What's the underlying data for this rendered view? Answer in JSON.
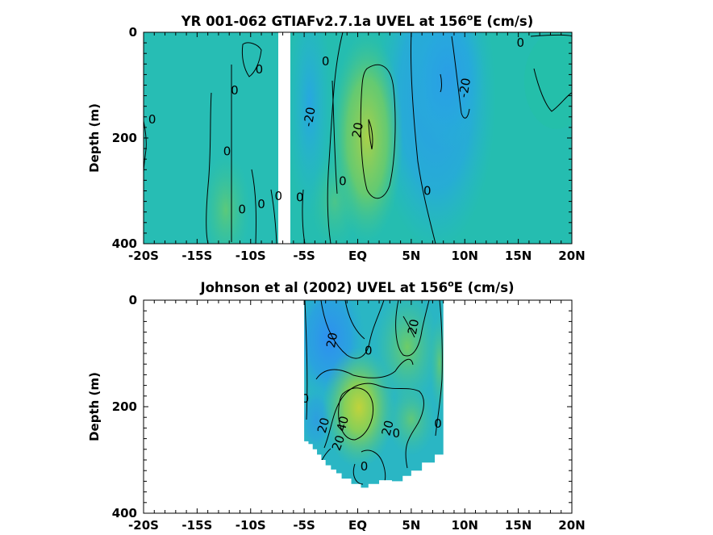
{
  "colors": {
    "background": "#25bdb0",
    "blue": "#2a9ee6",
    "blue_mid": "#1fb0d8",
    "green": "#5fcb72",
    "yellow_green": "#a8d04a",
    "contour": "#000000"
  },
  "chart_data": [
    {
      "id": "model",
      "type": "heatmap",
      "title": "YR 001-062 GTIAFv2.7.1a UVEL at 156",
      "title_sup": "o",
      "title_tail": "E (cm/s)",
      "xlabel": "",
      "ylabel": "Depth (m)",
      "xlim": [
        -20,
        20
      ],
      "ylim": [
        400,
        0
      ],
      "x_ticks": [
        -20,
        -15,
        -10,
        -5,
        0,
        5,
        10,
        15,
        20
      ],
      "x_tick_labels": [
        "-20S",
        "-15S",
        "-10S",
        "-5S",
        "EQ",
        "5N",
        "10N",
        "15N",
        "20N"
      ],
      "y_ticks": [
        0,
        200,
        400
      ],
      "y_tick_labels": [
        "0",
        "200",
        "400"
      ],
      "missing_latitude_band": [
        -7.3,
        -6.3
      ],
      "features": [
        {
          "kind": "eastward_core",
          "lat": 1.3,
          "depth": 180,
          "max_speed": 30,
          "lat_range": [
            -1.2,
            3.8
          ],
          "depth_range": [
            60,
            290
          ]
        },
        {
          "kind": "westward_core",
          "lat": 8.5,
          "depth": 110,
          "max_speed": -25,
          "lat_range": [
            4.5,
            13
          ],
          "depth_range": [
            0,
            300
          ]
        },
        {
          "kind": "westward_band",
          "lat": -4.5,
          "depth": 130,
          "max_speed": -15
        },
        {
          "kind": "eastward_band",
          "lat": -11.5,
          "depth": 260,
          "max_speed": 10
        }
      ],
      "contour_labels": [
        {
          "text": "0",
          "lat": -19.2,
          "depth": 165
        },
        {
          "text": "0",
          "lat": -11.5,
          "depth": 110
        },
        {
          "text": "0",
          "lat": -9.2,
          "depth": 70
        },
        {
          "text": "0",
          "lat": -12.2,
          "depth": 225
        },
        {
          "text": "0",
          "lat": -10.8,
          "depth": 335
        },
        {
          "text": "0",
          "lat": -9.0,
          "depth": 325
        },
        {
          "text": "0",
          "lat": -7.4,
          "depth": 310
        },
        {
          "text": "0",
          "lat": -5.4,
          "depth": 312
        },
        {
          "text": "0",
          "lat": -3.0,
          "depth": 55
        },
        {
          "text": "-20",
          "lat": -4.5,
          "depth": 160,
          "rotate": -80
        },
        {
          "text": "20",
          "lat": 0.0,
          "depth": 185,
          "rotate": -80
        },
        {
          "text": "0",
          "lat": -1.4,
          "depth": 282
        },
        {
          "text": "0",
          "lat": 6.5,
          "depth": 300
        },
        {
          "text": "-20",
          "lat": 10.0,
          "depth": 105,
          "rotate": -80
        },
        {
          "text": "0",
          "lat": 15.2,
          "depth": 20
        }
      ]
    },
    {
      "id": "observed",
      "type": "heatmap",
      "title": "Johnson et al (2002) UVEL at 156",
      "title_sup": "o",
      "title_tail": "E (cm/s)",
      "xlabel": "",
      "ylabel": "Depth (m)",
      "xlim": [
        -20,
        20
      ],
      "ylim": [
        400,
        0
      ],
      "x_ticks": [
        -20,
        -15,
        -10,
        -5,
        0,
        5,
        10,
        15,
        20
      ],
      "x_tick_labels": [
        "-20S",
        "-15S",
        "-10S",
        "-5S",
        "EQ",
        "5N",
        "10N",
        "15N",
        "20N"
      ],
      "y_ticks": [
        0,
        200,
        400
      ],
      "y_tick_labels": [
        "0",
        "200",
        "400"
      ],
      "data_lat_range": [
        -5,
        8
      ],
      "features": [
        {
          "kind": "eastward_core",
          "lat": 0.0,
          "depth": 200,
          "max_speed": 45
        },
        {
          "kind": "westward_core",
          "lat": -2.5,
          "depth": 60,
          "max_speed": -25
        },
        {
          "kind": "eastward_band",
          "lat": 4.5,
          "depth": 90,
          "max_speed": 25
        }
      ],
      "contour_labels": [
        {
          "text": "20",
          "lat": -2.4,
          "depth": 75,
          "rotate": -80
        },
        {
          "text": "0",
          "lat": 1.0,
          "depth": 95
        },
        {
          "text": "20",
          "lat": 5.2,
          "depth": 50,
          "rotate": -80
        },
        {
          "text": "0",
          "lat": -4.9,
          "depth": 185
        },
        {
          "text": "40",
          "lat": -1.4,
          "depth": 232,
          "rotate": -75
        },
        {
          "text": "20",
          "lat": -3.2,
          "depth": 235,
          "rotate": -75
        },
        {
          "text": "20",
          "lat": -1.8,
          "depth": 268,
          "rotate": -70
        },
        {
          "text": "20",
          "lat": 2.8,
          "depth": 240,
          "rotate": -75
        },
        {
          "text": "0",
          "lat": 3.6,
          "depth": 250
        },
        {
          "text": "0",
          "lat": 7.5,
          "depth": 232
        },
        {
          "text": "0",
          "lat": 0.6,
          "depth": 312
        }
      ]
    }
  ]
}
